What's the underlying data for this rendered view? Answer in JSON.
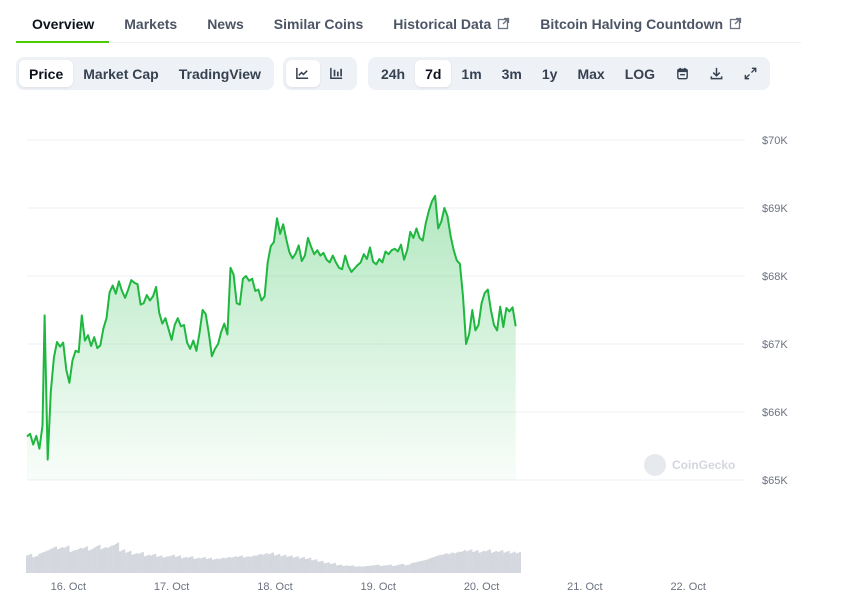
{
  "tabs": [
    {
      "label": "Overview",
      "active": true,
      "external": false
    },
    {
      "label": "Markets",
      "active": false,
      "external": false
    },
    {
      "label": "News",
      "active": false,
      "external": false
    },
    {
      "label": "Similar Coins",
      "active": false,
      "external": false
    },
    {
      "label": "Historical Data",
      "active": false,
      "external": true
    },
    {
      "label": "Bitcoin Halving Countdown",
      "active": false,
      "external": true
    }
  ],
  "toolbar": {
    "metric_buttons": [
      {
        "label": "Price",
        "active": true
      },
      {
        "label": "Market Cap",
        "active": false
      },
      {
        "label": "TradingView",
        "active": false
      }
    ],
    "chart_type_icons": [
      {
        "icon": "line-chart-icon",
        "active": true
      },
      {
        "icon": "candlestick-icon",
        "active": false
      }
    ],
    "range_buttons": [
      {
        "label": "24h",
        "active": false
      },
      {
        "label": "7d",
        "active": true
      },
      {
        "label": "1m",
        "active": false
      },
      {
        "label": "3m",
        "active": false
      },
      {
        "label": "1y",
        "active": false
      },
      {
        "label": "Max",
        "active": false
      },
      {
        "label": "LOG",
        "active": false
      }
    ],
    "action_icons": [
      "calendar-icon",
      "download-icon",
      "expand-icon"
    ]
  },
  "chart_data": {
    "type": "area",
    "x_tick_labels": [
      "16. Oct",
      "17. Oct",
      "18. Oct",
      "19. Oct",
      "20. Oct",
      "21. Oct",
      "22. Oct"
    ],
    "y_tick_labels": [
      "$70K",
      "$69K",
      "$68K",
      "$67K",
      "$66K",
      "$65K"
    ],
    "ylim": [
      65000,
      70000
    ],
    "grid": true,
    "watermark": "CoinGecko",
    "colors": {
      "line": "#1fb73f",
      "fill": "#36c25a",
      "volume": "#d4d8de",
      "grid": "#eef0f3"
    },
    "x_range_days": [
      15.6,
      22.55
    ],
    "series": [
      {
        "values": [
          [
            15.6,
            65640
          ],
          [
            15.63,
            65680
          ],
          [
            15.66,
            65520
          ],
          [
            15.69,
            65650
          ],
          [
            15.72,
            65460
          ],
          [
            15.75,
            65800
          ],
          [
            15.77,
            67420
          ],
          [
            15.8,
            65300
          ],
          [
            15.83,
            66300
          ],
          [
            15.86,
            66800
          ],
          [
            15.89,
            67030
          ],
          [
            15.92,
            66960
          ],
          [
            15.95,
            67020
          ],
          [
            15.98,
            66620
          ],
          [
            16.01,
            66430
          ],
          [
            16.04,
            66760
          ],
          [
            16.07,
            66900
          ],
          [
            16.1,
            66880
          ],
          [
            16.13,
            67420
          ],
          [
            16.16,
            67050
          ],
          [
            16.19,
            67130
          ],
          [
            16.22,
            66970
          ],
          [
            16.25,
            67100
          ],
          [
            16.28,
            66940
          ],
          [
            16.31,
            66980
          ],
          [
            16.34,
            67230
          ],
          [
            16.37,
            67380
          ],
          [
            16.4,
            67760
          ],
          [
            16.43,
            67860
          ],
          [
            16.46,
            67740
          ],
          [
            16.49,
            67920
          ],
          [
            16.52,
            67780
          ],
          [
            16.55,
            67680
          ],
          [
            16.58,
            67800
          ],
          [
            16.61,
            67940
          ],
          [
            16.64,
            67900
          ],
          [
            16.67,
            67880
          ],
          [
            16.7,
            67580
          ],
          [
            16.73,
            67600
          ],
          [
            16.76,
            67720
          ],
          [
            16.79,
            67640
          ],
          [
            16.82,
            67700
          ],
          [
            16.85,
            67840
          ],
          [
            16.88,
            67460
          ],
          [
            16.91,
            67300
          ],
          [
            16.94,
            67380
          ],
          [
            16.97,
            67220
          ],
          [
            17.0,
            67060
          ],
          [
            17.03,
            67280
          ],
          [
            17.06,
            67380
          ],
          [
            17.09,
            67260
          ],
          [
            17.12,
            67280
          ],
          [
            17.15,
            67020
          ],
          [
            17.18,
            66930
          ],
          [
            17.21,
            67050
          ],
          [
            17.24,
            66900
          ],
          [
            17.27,
            67160
          ],
          [
            17.3,
            67500
          ],
          [
            17.33,
            67440
          ],
          [
            17.36,
            67160
          ],
          [
            17.39,
            66820
          ],
          [
            17.42,
            66930
          ],
          [
            17.45,
            67000
          ],
          [
            17.48,
            67180
          ],
          [
            17.51,
            67300
          ],
          [
            17.54,
            67140
          ],
          [
            17.57,
            68120
          ],
          [
            17.6,
            68020
          ],
          [
            17.63,
            67600
          ],
          [
            17.66,
            67580
          ],
          [
            17.69,
            67960
          ],
          [
            17.72,
            68000
          ],
          [
            17.75,
            67930
          ],
          [
            17.78,
            67960
          ],
          [
            17.81,
            67780
          ],
          [
            17.84,
            67800
          ],
          [
            17.87,
            67640
          ],
          [
            17.9,
            67700
          ],
          [
            17.93,
            68200
          ],
          [
            17.96,
            68440
          ],
          [
            17.99,
            68500
          ],
          [
            18.02,
            68850
          ],
          [
            18.05,
            68620
          ],
          [
            18.08,
            68760
          ],
          [
            18.11,
            68540
          ],
          [
            18.14,
            68350
          ],
          [
            18.17,
            68260
          ],
          [
            18.2,
            68330
          ],
          [
            18.23,
            68450
          ],
          [
            18.26,
            68220
          ],
          [
            18.29,
            68300
          ],
          [
            18.32,
            68560
          ],
          [
            18.35,
            68430
          ],
          [
            18.38,
            68320
          ],
          [
            18.41,
            68380
          ],
          [
            18.44,
            68300
          ],
          [
            18.47,
            68340
          ],
          [
            18.5,
            68240
          ],
          [
            18.53,
            68200
          ],
          [
            18.56,
            68300
          ],
          [
            18.59,
            68200
          ],
          [
            18.62,
            68120
          ],
          [
            18.65,
            68100
          ],
          [
            18.68,
            68300
          ],
          [
            18.71,
            68150
          ],
          [
            18.74,
            68060
          ],
          [
            18.77,
            68110
          ],
          [
            18.8,
            68160
          ],
          [
            18.83,
            68200
          ],
          [
            18.86,
            68320
          ],
          [
            18.89,
            68250
          ],
          [
            18.92,
            68420
          ],
          [
            18.95,
            68210
          ],
          [
            18.98,
            68170
          ],
          [
            19.01,
            68250
          ],
          [
            19.04,
            68200
          ],
          [
            19.07,
            68360
          ],
          [
            19.1,
            68320
          ],
          [
            19.13,
            68380
          ],
          [
            19.16,
            68400
          ],
          [
            19.19,
            68360
          ],
          [
            19.22,
            68460
          ],
          [
            19.25,
            68240
          ],
          [
            19.28,
            68380
          ],
          [
            19.31,
            68650
          ],
          [
            19.34,
            68560
          ],
          [
            19.37,
            68700
          ],
          [
            19.4,
            68560
          ],
          [
            19.43,
            68520
          ],
          [
            19.46,
            68780
          ],
          [
            19.49,
            68960
          ],
          [
            19.52,
            69100
          ],
          [
            19.55,
            69180
          ],
          [
            19.58,
            68700
          ],
          [
            19.61,
            68800
          ],
          [
            19.64,
            69000
          ],
          [
            19.67,
            68880
          ],
          [
            19.7,
            68590
          ],
          [
            19.73,
            68380
          ],
          [
            19.76,
            68230
          ],
          [
            19.79,
            68180
          ],
          [
            19.82,
            67700
          ],
          [
            19.85,
            67000
          ],
          [
            19.88,
            67150
          ],
          [
            19.91,
            67500
          ],
          [
            19.94,
            67200
          ],
          [
            19.97,
            67280
          ],
          [
            20.0,
            67600
          ],
          [
            20.03,
            67750
          ],
          [
            20.06,
            67800
          ],
          [
            20.09,
            67500
          ],
          [
            20.12,
            67280
          ],
          [
            20.15,
            67200
          ],
          [
            20.18,
            67550
          ],
          [
            20.21,
            67250
          ],
          [
            20.24,
            67530
          ],
          [
            20.27,
            67480
          ],
          [
            20.3,
            67540
          ],
          [
            20.33,
            67260
          ]
        ]
      }
    ],
    "volume": [
      [
        15.6,
        0.5
      ],
      [
        15.66,
        0.45
      ],
      [
        15.72,
        0.55
      ],
      [
        15.78,
        0.62
      ],
      [
        15.84,
        0.7
      ],
      [
        15.9,
        0.68
      ],
      [
        15.96,
        0.72
      ],
      [
        16.02,
        0.6
      ],
      [
        16.08,
        0.66
      ],
      [
        16.14,
        0.7
      ],
      [
        16.2,
        0.64
      ],
      [
        16.26,
        0.74
      ],
      [
        16.32,
        0.68
      ],
      [
        16.38,
        0.72
      ],
      [
        16.44,
        0.8
      ],
      [
        16.5,
        0.62
      ],
      [
        16.56,
        0.58
      ],
      [
        16.62,
        0.52
      ],
      [
        16.68,
        0.55
      ],
      [
        16.74,
        0.48
      ],
      [
        16.8,
        0.5
      ],
      [
        16.86,
        0.46
      ],
      [
        16.92,
        0.44
      ],
      [
        16.98,
        0.48
      ],
      [
        17.04,
        0.46
      ],
      [
        17.1,
        0.42
      ],
      [
        17.16,
        0.44
      ],
      [
        17.22,
        0.4
      ],
      [
        17.28,
        0.42
      ],
      [
        17.34,
        0.4
      ],
      [
        17.4,
        0.38
      ],
      [
        17.46,
        0.4
      ],
      [
        17.52,
        0.42
      ],
      [
        17.58,
        0.44
      ],
      [
        17.64,
        0.46
      ],
      [
        17.7,
        0.44
      ],
      [
        17.76,
        0.46
      ],
      [
        17.82,
        0.5
      ],
      [
        17.88,
        0.52
      ],
      [
        17.94,
        0.54
      ],
      [
        18.0,
        0.5
      ],
      [
        18.06,
        0.48
      ],
      [
        18.12,
        0.46
      ],
      [
        18.18,
        0.44
      ],
      [
        18.24,
        0.42
      ],
      [
        18.3,
        0.4
      ],
      [
        18.36,
        0.36
      ],
      [
        18.42,
        0.32
      ],
      [
        18.48,
        0.28
      ],
      [
        18.54,
        0.26
      ],
      [
        18.6,
        0.22
      ],
      [
        18.66,
        0.2
      ],
      [
        18.72,
        0.2
      ],
      [
        18.78,
        0.18
      ],
      [
        18.84,
        0.18
      ],
      [
        18.9,
        0.2
      ],
      [
        18.96,
        0.22
      ],
      [
        19.02,
        0.2
      ],
      [
        19.08,
        0.22
      ],
      [
        19.14,
        0.2
      ],
      [
        19.2,
        0.24
      ],
      [
        19.26,
        0.22
      ],
      [
        19.32,
        0.28
      ],
      [
        19.38,
        0.32
      ],
      [
        19.44,
        0.36
      ],
      [
        19.5,
        0.42
      ],
      [
        19.56,
        0.48
      ],
      [
        19.62,
        0.52
      ],
      [
        19.68,
        0.54
      ],
      [
        19.74,
        0.56
      ],
      [
        19.8,
        0.6
      ],
      [
        19.86,
        0.62
      ],
      [
        19.92,
        0.6
      ],
      [
        19.98,
        0.58
      ],
      [
        20.04,
        0.62
      ],
      [
        20.1,
        0.58
      ],
      [
        20.16,
        0.6
      ],
      [
        20.22,
        0.58
      ],
      [
        20.28,
        0.56
      ],
      [
        20.33,
        0.55
      ]
    ]
  }
}
